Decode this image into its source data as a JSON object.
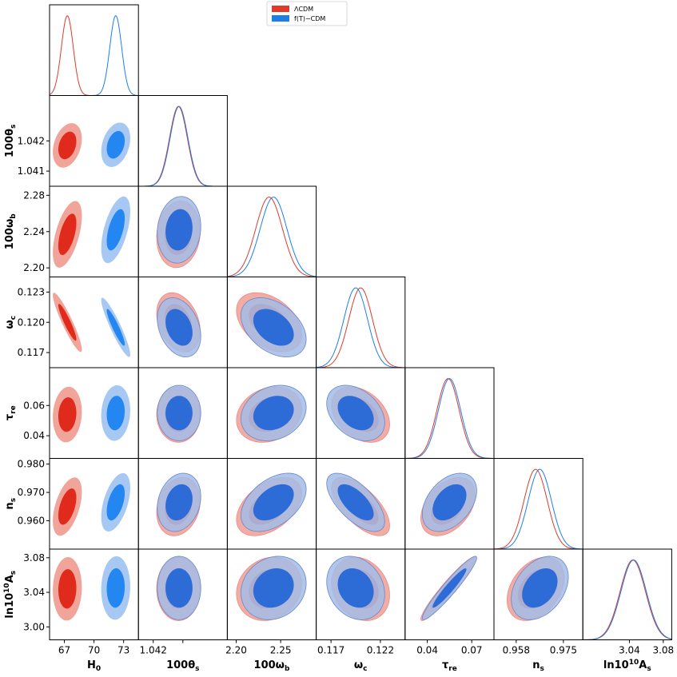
{
  "chart_data": {
    "type": "corner",
    "title": "",
    "series": [
      {
        "name": "ΛCDM",
        "color": "#e03a2a",
        "fill_inner": "#e02a1c",
        "fill_outer": "#f0a49a"
      },
      {
        "name": "f(T)−CDM",
        "color": "#1e7ee8",
        "fill_inner": "#2486f0",
        "fill_outer": "#a6c8f2"
      }
    ],
    "params": [
      {
        "label": "H₀",
        "axlabel": "H0",
        "sub": "0",
        "sup": "",
        "prefix": "H",
        "range": [
          65.5,
          74.5
        ],
        "ticks": [
          "67",
          "70",
          "73"
        ],
        "tick_values": [
          67,
          70,
          73
        ]
      },
      {
        "label": "100θs",
        "axlabel": "100θs",
        "prefix": "100θ",
        "sub": "s",
        "sup": "",
        "range": [
          1.0405,
          1.0435
        ],
        "ticks": [
          "1.041",
          "1.042"
        ],
        "xticks": [
          "1.042"
        ],
        "tick_values": [
          1.041,
          1.042
        ]
      },
      {
        "label": "100ωb",
        "axlabel": "100ωb",
        "prefix": "100ω",
        "sub": "b",
        "sup": "",
        "range": [
          2.19,
          2.29
        ],
        "ticks": [
          "2.20",
          "2.24",
          "2.28"
        ],
        "xticks": [
          "2.20",
          "2.25"
        ],
        "tick_values": [
          2.2,
          2.24,
          2.28
        ],
        "xtick_values": [
          2.2,
          2.25
        ]
      },
      {
        "label": "ωc",
        "axlabel": "ωc",
        "prefix": "ω",
        "sub": "c",
        "sup": "",
        "range": [
          0.1155,
          0.1245
        ],
        "ticks": [
          "0.117",
          "0.120",
          "0.123"
        ],
        "xticks": [
          "0.117",
          "0.122"
        ],
        "tick_values": [
          0.117,
          0.12,
          0.123
        ],
        "xtick_values": [
          0.117,
          0.122
        ]
      },
      {
        "label": "τre",
        "axlabel": "τre",
        "prefix": "τ",
        "sub": "re",
        "sup": "",
        "range": [
          0.025,
          0.085
        ],
        "ticks": [
          "0.04",
          "0.06"
        ],
        "xticks": [
          "0.04",
          "0.07"
        ],
        "tick_values": [
          0.04,
          0.06
        ],
        "xtick_values": [
          0.04,
          0.07
        ]
      },
      {
        "label": "ns",
        "axlabel": "ns",
        "prefix": "n",
        "sub": "s",
        "sup": "",
        "range": [
          0.95,
          0.982
        ],
        "ticks": [
          "0.960",
          "0.970",
          "0.980"
        ],
        "xticks": [
          "0.958",
          "0.975"
        ],
        "tick_values": [
          0.96,
          0.97,
          0.98
        ],
        "xtick_values": [
          0.958,
          0.975
        ]
      },
      {
        "label": "ln10¹⁰As",
        "axlabel": "ln10^10As",
        "prefix": "ln10",
        "sup": "10",
        "prefix2": "A",
        "sub": "s",
        "range": [
          2.985,
          3.09
        ],
        "ticks": [
          "3.00",
          "3.04",
          "3.08"
        ],
        "xticks": [
          "3.04",
          "3.08"
        ],
        "tick_values": [
          3.0,
          3.04,
          3.08
        ],
        "xtick_values": [
          3.04,
          3.08
        ]
      }
    ],
    "posteriors": [
      {
        "lcdm_mean": [
          67.3,
          1.04185,
          2.237,
          0.12,
          0.054,
          0.965,
          3.044
        ],
        "lcdm_sigma": [
          0.6,
          0.0003,
          0.015,
          0.0012,
          0.0075,
          0.0042,
          0.015
        ]
      },
      {
        "ft_mean": [
          72.2,
          1.04187,
          2.242,
          0.1195,
          0.055,
          0.9665,
          3.045
        ],
        "ft_sigma": [
          0.6,
          0.0003,
          0.015,
          0.0012,
          0.0075,
          0.0042,
          0.015
        ]
      }
    ],
    "correlations": {
      "H0-100θs": 0.3,
      "H0-100ωb": 0.55,
      "H0-ωc": -0.92,
      "H0-τre": 0.1,
      "H0-ns": 0.5,
      "H0-ln10^10As": 0.05,
      "100θs-100ωb": 0.1,
      "100θs-ωc": -0.3,
      "100θs-τre": 0.0,
      "100θs-ns": 0.2,
      "100θs-ln10^10As": 0.0,
      "100ωb-ωc": -0.4,
      "100ωb-τre": 0.2,
      "100ωb-ns": 0.45,
      "100ωb-ln10^10As": 0.15,
      "ωc-τre": -0.35,
      "ωc-ns": -0.65,
      "ωc-ln10^10As": -0.2,
      "τre-ns": 0.4,
      "τre-ln10^10As": 0.95,
      "ns-ln10^10As": 0.35
    },
    "legend": "top-center",
    "grid": false
  }
}
